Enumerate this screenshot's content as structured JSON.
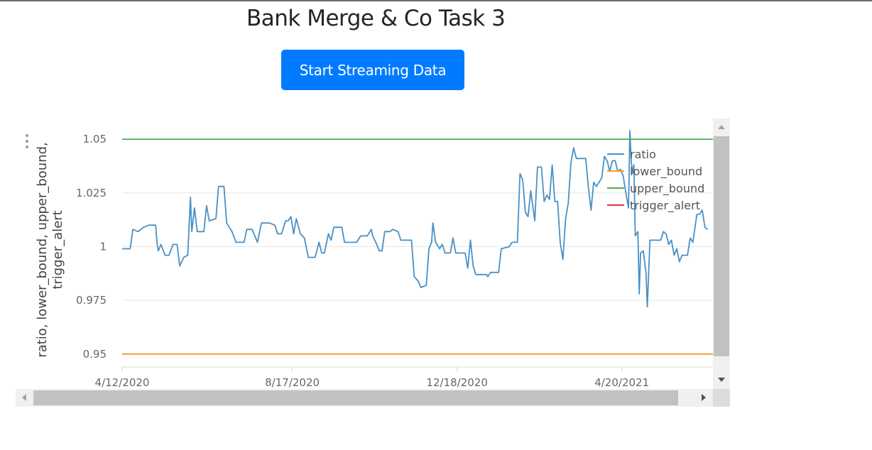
{
  "page": {
    "title": "Bank Merge & Co Task 3",
    "stream_button_label": "Start Streaming Data"
  },
  "colors": {
    "button_bg": "#007bff",
    "ratio": "#4a90c4",
    "lower_bound": "#f39c2a",
    "upper_bound": "#4caf50",
    "trigger_alert": "#d9383a",
    "grid": "#e6e6e6"
  },
  "icons": {
    "menu": "kebab-menu-icon",
    "scroll_up": "arrow-up-icon",
    "scroll_down": "arrow-down-icon",
    "scroll_left": "arrow-left-icon",
    "scroll_right": "arrow-right-icon"
  },
  "chart_data": {
    "type": "line",
    "ylabel": "ratio, lower_bound, upper_bound, trigger_alert",
    "xlabel": "",
    "y_ticks": [
      "1.05",
      "1.025",
      "1",
      "0.975",
      "0.95"
    ],
    "y_tick_values": [
      1.05,
      1.025,
      1.0,
      0.975,
      0.95
    ],
    "ylim": [
      0.944,
      1.053
    ],
    "x_ticks": [
      "4/12/2020",
      "8/17/2020",
      "12/18/2020",
      "4/20/2021"
    ],
    "x_tick_values": [
      "2020-04-12",
      "2020-08-17",
      "2020-12-18",
      "2021-04-20"
    ],
    "xlim": [
      "2020-04-12",
      "2021-06-27"
    ],
    "grid": true,
    "legend_position": "top-right",
    "series": [
      {
        "name": "ratio",
        "color": "#4a90c4",
        "points": [
          [
            "2020-04-12",
            0.999
          ],
          [
            "2020-04-18",
            0.999
          ],
          [
            "2020-04-20",
            1.008
          ],
          [
            "2020-04-24",
            1.007
          ],
          [
            "2020-04-28",
            1.009
          ],
          [
            "2020-05-02",
            1.01
          ],
          [
            "2020-05-07",
            1.01
          ],
          [
            "2020-05-08",
            1.002
          ],
          [
            "2020-05-09",
            0.998
          ],
          [
            "2020-05-11",
            1.001
          ],
          [
            "2020-05-14",
            0.996
          ],
          [
            "2020-05-17",
            0.996
          ],
          [
            "2020-05-20",
            1.001
          ],
          [
            "2020-05-23",
            1.001
          ],
          [
            "2020-05-25",
            0.991
          ],
          [
            "2020-05-28",
            0.995
          ],
          [
            "2020-05-31",
            0.996
          ],
          [
            "2020-06-02",
            1.023
          ],
          [
            "2020-06-03",
            1.007
          ],
          [
            "2020-06-05",
            1.018
          ],
          [
            "2020-06-07",
            1.007
          ],
          [
            "2020-06-12",
            1.007
          ],
          [
            "2020-06-14",
            1.019
          ],
          [
            "2020-06-16",
            1.012
          ],
          [
            "2020-06-21",
            1.013
          ],
          [
            "2020-06-23",
            1.028
          ],
          [
            "2020-06-27",
            1.028
          ],
          [
            "2020-06-29",
            1.011
          ],
          [
            "2020-07-03",
            1.007
          ],
          [
            "2020-07-06",
            1.002
          ],
          [
            "2020-07-12",
            1.002
          ],
          [
            "2020-07-14",
            1.008
          ],
          [
            "2020-07-18",
            1.008
          ],
          [
            "2020-07-22",
            1.002
          ],
          [
            "2020-07-25",
            1.011
          ],
          [
            "2020-07-31",
            1.011
          ],
          [
            "2020-08-04",
            1.01
          ],
          [
            "2020-08-06",
            1.006
          ],
          [
            "2020-08-09",
            1.006
          ],
          [
            "2020-08-12",
            1.012
          ],
          [
            "2020-08-14",
            1.012
          ],
          [
            "2020-08-16",
            1.014
          ],
          [
            "2020-08-18",
            1.006
          ],
          [
            "2020-08-20",
            1.013
          ],
          [
            "2020-08-23",
            1.006
          ],
          [
            "2020-08-26",
            1.004
          ],
          [
            "2020-08-29",
            0.995
          ],
          [
            "2020-09-03",
            0.995
          ],
          [
            "2020-09-06",
            1.002
          ],
          [
            "2020-09-08",
            0.997
          ],
          [
            "2020-09-10",
            0.997
          ],
          [
            "2020-09-13",
            1.006
          ],
          [
            "2020-09-15",
            1.003
          ],
          [
            "2020-09-17",
            1.009
          ],
          [
            "2020-09-23",
            1.009
          ],
          [
            "2020-09-25",
            1.002
          ],
          [
            "2020-10-04",
            1.002
          ],
          [
            "2020-10-07",
            1.005
          ],
          [
            "2020-10-12",
            1.005
          ],
          [
            "2020-10-15",
            1.008
          ],
          [
            "2020-10-16",
            1.005
          ],
          [
            "2020-10-19",
            1.001
          ],
          [
            "2020-10-21",
            0.998
          ],
          [
            "2020-10-23",
            0.998
          ],
          [
            "2020-10-25",
            1.007
          ],
          [
            "2020-10-29",
            1.007
          ],
          [
            "2020-10-31",
            1.008
          ],
          [
            "2020-11-04",
            1.007
          ],
          [
            "2020-11-06",
            1.003
          ],
          [
            "2020-11-14",
            1.003
          ],
          [
            "2020-11-16",
            0.986
          ],
          [
            "2020-11-19",
            0.984
          ],
          [
            "2020-11-21",
            0.981
          ],
          [
            "2020-11-25",
            0.982
          ],
          [
            "2020-11-27",
            0.999
          ],
          [
            "2020-11-29",
            1.002
          ],
          [
            "2020-11-30",
            1.011
          ],
          [
            "2020-12-02",
            1.002
          ],
          [
            "2020-12-05",
            0.999
          ],
          [
            "2020-12-07",
            1.001
          ],
          [
            "2020-12-09",
            0.997
          ],
          [
            "2020-12-13",
            0.997
          ],
          [
            "2020-12-15",
            1.004
          ],
          [
            "2020-12-17",
            0.997
          ],
          [
            "2020-12-24",
            0.997
          ],
          [
            "2020-12-26",
            0.99
          ],
          [
            "2020-12-28",
            1.003
          ],
          [
            "2020-12-30",
            0.991
          ],
          [
            "2021-01-01",
            0.987
          ],
          [
            "2021-01-09",
            0.987
          ],
          [
            "2021-01-10",
            0.986
          ],
          [
            "2021-01-12",
            0.988
          ],
          [
            "2021-01-18",
            0.988
          ],
          [
            "2021-01-20",
            0.999
          ],
          [
            "2021-01-26",
            1.0
          ],
          [
            "2021-01-28",
            1.002
          ],
          [
            "2021-02-01",
            1.002
          ],
          [
            "2021-02-03",
            1.034
          ],
          [
            "2021-02-05",
            1.031
          ],
          [
            "2021-02-07",
            1.016
          ],
          [
            "2021-02-09",
            1.014
          ],
          [
            "2021-02-11",
            1.026
          ],
          [
            "2021-02-14",
            1.012
          ],
          [
            "2021-02-16",
            1.037
          ],
          [
            "2021-02-19",
            1.037
          ],
          [
            "2021-02-21",
            1.021
          ],
          [
            "2021-02-23",
            1.024
          ],
          [
            "2021-02-25",
            1.022
          ],
          [
            "2021-02-27",
            1.038
          ],
          [
            "2021-03-01",
            1.021
          ],
          [
            "2021-03-03",
            1.021
          ],
          [
            "2021-03-05",
            1.002
          ],
          [
            "2021-03-07",
            0.994
          ],
          [
            "2021-03-09",
            1.013
          ],
          [
            "2021-03-11",
            1.02
          ],
          [
            "2021-03-13",
            1.039
          ],
          [
            "2021-03-15",
            1.046
          ],
          [
            "2021-03-17",
            1.041
          ],
          [
            "2021-03-24",
            1.041
          ],
          [
            "2021-03-26",
            1.028
          ],
          [
            "2021-03-28",
            1.017
          ],
          [
            "2021-03-30",
            1.03
          ],
          [
            "2021-04-01",
            1.028
          ],
          [
            "2021-04-05",
            1.032
          ],
          [
            "2021-04-07",
            1.042
          ],
          [
            "2021-04-09",
            1.04
          ],
          [
            "2021-04-11",
            1.035
          ],
          [
            "2021-04-13",
            1.04
          ],
          [
            "2021-04-15",
            1.04
          ],
          [
            "2021-04-17",
            1.035
          ],
          [
            "2021-04-19",
            1.036
          ],
          [
            "2021-04-21",
            1.033
          ],
          [
            "2021-04-23",
            1.025
          ],
          [
            "2021-04-25",
            1.018
          ],
          [
            "2021-04-26",
            1.054
          ],
          [
            "2021-04-27",
            1.04
          ],
          [
            "2021-04-28",
            1.034
          ],
          [
            "2021-04-29",
            1.038
          ],
          [
            "2021-04-30",
            1.005
          ],
          [
            "2021-05-02",
            1.007
          ],
          [
            "2021-05-03",
            0.978
          ],
          [
            "2021-05-04",
            0.997
          ],
          [
            "2021-05-06",
            0.998
          ],
          [
            "2021-05-08",
            0.988
          ],
          [
            "2021-05-09",
            0.972
          ],
          [
            "2021-05-11",
            1.003
          ],
          [
            "2021-05-15",
            1.003
          ],
          [
            "2021-05-19",
            1.003
          ],
          [
            "2021-05-21",
            1.007
          ],
          [
            "2021-05-23",
            1.006
          ],
          [
            "2021-05-25",
            1.001
          ],
          [
            "2021-05-27",
            1.003
          ],
          [
            "2021-05-29",
            0.996
          ],
          [
            "2021-05-31",
            0.999
          ],
          [
            "2021-06-02",
            0.993
          ],
          [
            "2021-06-04",
            0.996
          ],
          [
            "2021-06-08",
            0.996
          ],
          [
            "2021-06-10",
            1.004
          ],
          [
            "2021-06-12",
            1.002
          ],
          [
            "2021-06-15",
            1.015
          ],
          [
            "2021-06-17",
            1.015
          ],
          [
            "2021-06-19",
            1.017
          ],
          [
            "2021-06-21",
            1.009
          ],
          [
            "2021-06-23",
            1.008
          ]
        ]
      },
      {
        "name": "lower_bound",
        "color": "#f39c2a",
        "points": [
          [
            "2020-04-12",
            0.95
          ],
          [
            "2021-06-27",
            0.95
          ]
        ]
      },
      {
        "name": "upper_bound",
        "color": "#4caf50",
        "points": [
          [
            "2020-04-12",
            1.05
          ],
          [
            "2021-06-27",
            1.05
          ]
        ]
      },
      {
        "name": "trigger_alert",
        "color": "#d9383a",
        "points": []
      }
    ],
    "legend": [
      "ratio",
      "lower_bound",
      "upper_bound",
      "trigger_alert"
    ]
  }
}
